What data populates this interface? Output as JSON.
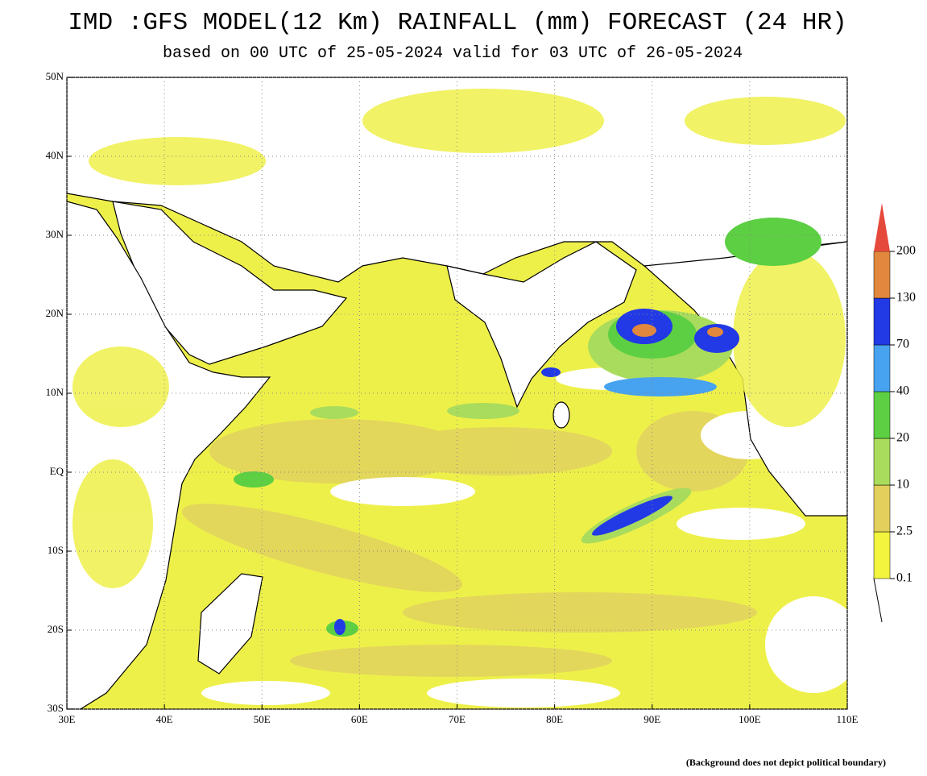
{
  "map": {
    "title": "IMD :GFS MODEL(12 Km) RAINFALL (mm) FORECAST (24 HR)",
    "subtitle": "based on 00 UTC of 25-05-2024 valid for 03 UTC of 26-05-2024",
    "xlim": [
      30,
      110
    ],
    "ylim": [
      -30,
      50
    ],
    "xticks": [
      {
        "value": 30,
        "label": "30E"
      },
      {
        "value": 40,
        "label": "40E"
      },
      {
        "value": 50,
        "label": "50E"
      },
      {
        "value": 60,
        "label": "60E"
      },
      {
        "value": 70,
        "label": "70E"
      },
      {
        "value": 80,
        "label": "80E"
      },
      {
        "value": 90,
        "label": "90E"
      },
      {
        "value": 100,
        "label": "100E"
      },
      {
        "value": 110,
        "label": "110E"
      }
    ],
    "yticks": [
      {
        "value": 50,
        "label": "50N"
      },
      {
        "value": 40,
        "label": "40N"
      },
      {
        "value": 30,
        "label": "30N"
      },
      {
        "value": 20,
        "label": "20N"
      },
      {
        "value": 10,
        "label": "10N"
      },
      {
        "value": 0,
        "label": "EQ"
      },
      {
        "value": -10,
        "label": "10S"
      },
      {
        "value": -20,
        "label": "20S"
      },
      {
        "value": -30,
        "label": "30S"
      }
    ],
    "grid": true,
    "legend": {
      "levels": [
        0.1,
        2.5,
        10,
        20,
        40,
        70,
        130,
        200
      ],
      "colors": [
        "#f2f43e",
        "#e2cf5c",
        "#a9dc5c",
        "#5ccf43",
        "#47a2ef",
        "#2239e6",
        "#e1883e",
        "#e5493b"
      ]
    },
    "note": "(Background does not depict political boundary)"
  }
}
